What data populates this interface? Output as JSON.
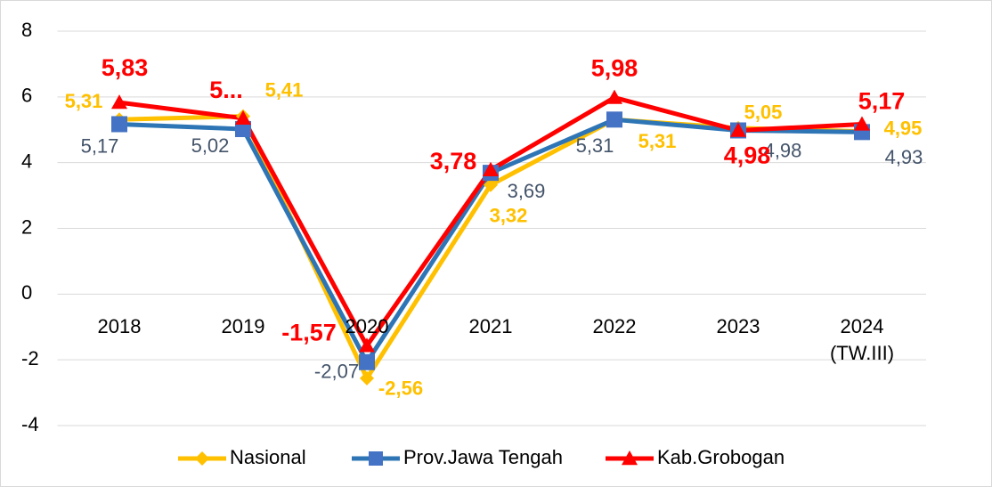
{
  "chart_data": {
    "type": "line",
    "categories": [
      "2018",
      "2019",
      "2020",
      "2021",
      "2022",
      "2023",
      "2024\n(TW.III)"
    ],
    "series": [
      {
        "name": "Nasional",
        "color": "#FFC000",
        "label_color": "#FFC000",
        "marker": "diamond",
        "values": [
          5.31,
          5.41,
          -2.56,
          3.32,
          5.31,
          5.05,
          4.95
        ],
        "value_labels": [
          "5,31",
          "5,41",
          "-2,56",
          "3,32",
          "5,31",
          "5,05",
          "4,95"
        ]
      },
      {
        "name": "Prov.Jawa Tengah",
        "color": "#2E75B6",
        "marker_color": "#4472C4",
        "label_color": "#44546A",
        "marker": "square",
        "values": [
          5.17,
          5.02,
          -2.07,
          3.69,
          5.31,
          4.98,
          4.93
        ],
        "value_labels": [
          "5,17",
          "5,02",
          "-2,07",
          "3,69",
          "5,31",
          "4,98",
          "4,93"
        ]
      },
      {
        "name": "Kab.Grobogan",
        "color": "#FF0000",
        "label_color": "#FF0000",
        "marker": "triangle",
        "values": [
          5.83,
          5.35,
          -1.57,
          3.78,
          5.98,
          4.98,
          5.17
        ],
        "value_labels": [
          "5,83",
          "5...",
          "-1,57",
          "3,78",
          "5,98",
          "4,98",
          "5,17"
        ]
      }
    ],
    "ylim": [
      -4,
      8
    ],
    "yticks": [
      -4,
      -2,
      0,
      2,
      4,
      6,
      8
    ],
    "grid": true,
    "legend": "bottom"
  }
}
